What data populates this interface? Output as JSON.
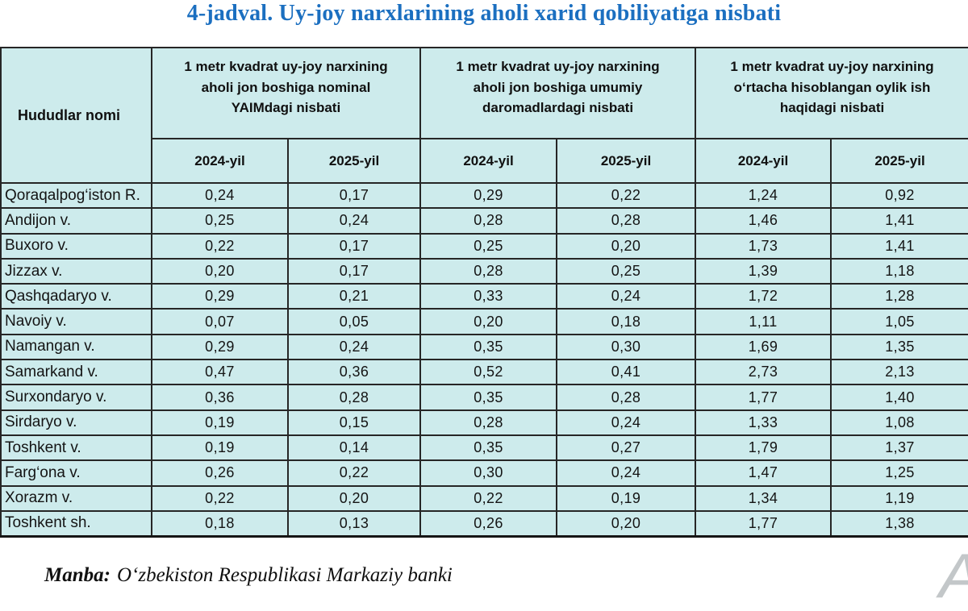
{
  "title": "4-jadval. Uy-joy narxlarining aholi xarid qobiliyatiga nisbati",
  "table": {
    "region_header": "Hududlar nomi",
    "groups": [
      {
        "label": "1 metr kvadrat uy-joy narxining aholi jon boshiga nominal YAIMdagi nisbati"
      },
      {
        "label": "1 metr kvadrat uy-joy narxining aholi jon boshiga umumiy daromadlardagi nisbati"
      },
      {
        "label": "1 metr kvadrat uy-joy narxining o‘rtacha hisoblangan oylik ish haqidagi nisbati"
      }
    ],
    "year_headers": [
      "2024-yil",
      "2025-yil"
    ],
    "rows": [
      {
        "region": "Qoraqalpog‘iston R.",
        "values": [
          "0,24",
          "0,17",
          "0,29",
          "0,22",
          "1,24",
          "0,92"
        ]
      },
      {
        "region": "Andijon v.",
        "values": [
          "0,25",
          "0,24",
          "0,28",
          "0,28",
          "1,46",
          "1,41"
        ]
      },
      {
        "region": "Buxoro v.",
        "values": [
          "0,22",
          "0,17",
          "0,25",
          "0,20",
          "1,73",
          "1,41"
        ]
      },
      {
        "region": "Jizzax v.",
        "values": [
          "0,20",
          "0,17",
          "0,28",
          "0,25",
          "1,39",
          "1,18"
        ]
      },
      {
        "region": "Qashqadaryo v.",
        "values": [
          "0,29",
          "0,21",
          "0,33",
          "0,24",
          "1,72",
          "1,28"
        ]
      },
      {
        "region": "Navoiy v.",
        "values": [
          "0,07",
          "0,05",
          "0,20",
          "0,18",
          "1,11",
          "1,05"
        ]
      },
      {
        "region": "Namangan v.",
        "values": [
          "0,29",
          "0,24",
          "0,35",
          "0,30",
          "1,69",
          "1,35"
        ]
      },
      {
        "region": "Samarkand v.",
        "values": [
          "0,47",
          "0,36",
          "0,52",
          "0,41",
          "2,73",
          "2,13"
        ]
      },
      {
        "region": "Surxondaryo v.",
        "values": [
          "0,36",
          "0,28",
          "0,35",
          "0,28",
          "1,77",
          "1,40"
        ]
      },
      {
        "region": "Sirdaryo v.",
        "values": [
          "0,19",
          "0,15",
          "0,28",
          "0,24",
          "1,33",
          "1,08"
        ]
      },
      {
        "region": "Toshkent v.",
        "values": [
          "0,19",
          "0,14",
          "0,35",
          "0,27",
          "1,79",
          "1,37"
        ]
      },
      {
        "region": "Farg‘ona v.",
        "values": [
          "0,26",
          "0,22",
          "0,30",
          "0,24",
          "1,47",
          "1,25"
        ]
      },
      {
        "region": "Xorazm v.",
        "values": [
          "0,22",
          "0,20",
          "0,22",
          "0,19",
          "1,34",
          "1,19"
        ]
      },
      {
        "region": "Toshkent sh.",
        "values": [
          "0,18",
          "0,13",
          "0,26",
          "0,20",
          "1,77",
          "1,38"
        ]
      }
    ]
  },
  "footer": {
    "source_label": "Manba:",
    "source_text": "O‘zbekiston Respublikasi Markaziy banki"
  },
  "watermark": "A",
  "colors": {
    "title_blue": "#1b6fc0",
    "cell_cyan": "#cdebec",
    "border_dark": "#262626",
    "row_separator": "#4f4f4f"
  }
}
